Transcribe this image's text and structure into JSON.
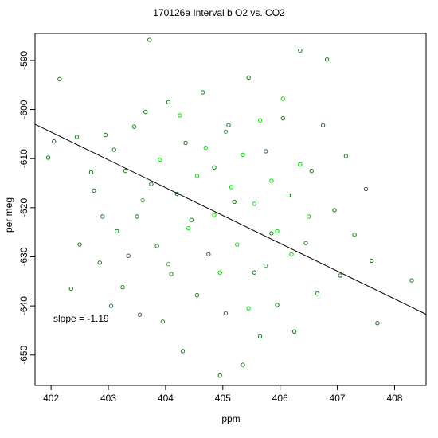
{
  "chart_data": {
    "type": "scatter",
    "title": "170126a   Interval b O2 vs. CO2",
    "xlabel": "ppm",
    "ylabel": "per meg",
    "xlim": [
      401.72,
      408.55
    ],
    "ylim": [
      -656.2,
      -584.5
    ],
    "x_ticks": [
      402,
      403,
      404,
      405,
      406,
      407,
      408
    ],
    "y_ticks": [
      -590,
      -600,
      -610,
      -620,
      -630,
      -640,
      -650
    ],
    "grid": false,
    "legend": "none",
    "colors": {
      "series_dark": "#1a7a1a",
      "series_bright": "#00e000",
      "fit_line": "#000000"
    },
    "annotation": "slope =  -1.19",
    "fit_line": {
      "slope": -1.19,
      "x": [
        401.72,
        408.55
      ],
      "y": [
        -603.0,
        -641.7
      ]
    },
    "series": [
      {
        "x": [
          401.95,
          402.05,
          402.15,
          402.35,
          402.45,
          402.5,
          402.7,
          402.75,
          402.85,
          402.9,
          402.95,
          403.05,
          403.1,
          403.15,
          403.25,
          403.3,
          403.35,
          403.45,
          403.5,
          403.55,
          403.65,
          403.72,
          403.75,
          403.85,
          403.95,
          404.05,
          404.1,
          404.2,
          404.3,
          404.35,
          404.45,
          404.55,
          404.65,
          404.75,
          404.85,
          404.95,
          405.05,
          405.1,
          405.2,
          405.35,
          405.45,
          405.55,
          405.65,
          405.75,
          405.85,
          405.95,
          406.05,
          406.15,
          406.25,
          406.35,
          406.45,
          406.55,
          406.65,
          406.75,
          406.82,
          406.95,
          407.05,
          407.15,
          407.3,
          407.5,
          407.6,
          407.7,
          408.3
        ],
        "y": [
          -609.8,
          -606.5,
          -593.8,
          -636.5,
          -605.6,
          -627.5,
          -612.8,
          -616.5,
          -631.2,
          -621.8,
          -605.2,
          -640.0,
          -608.2,
          -624.8,
          -636.2,
          -612.5,
          -629.8,
          -603.5,
          -621.8,
          -641.8,
          -600.5,
          -585.8,
          -615.2,
          -627.8,
          -643.2,
          -598.5,
          -633.5,
          -617.2,
          -649.2,
          -606.8,
          -622.5,
          -637.8,
          -596.5,
          -629.5,
          -611.8,
          -654.2,
          -641.5,
          -603.2,
          -618.8,
          -652.0,
          -593.5,
          -633.2,
          -646.2,
          -608.5,
          -625.2,
          -639.8,
          -601.8,
          -617.5,
          -645.2,
          -588.0,
          -627.2,
          -612.5,
          -637.5,
          -603.2,
          -589.8,
          -620.5,
          -633.8,
          -609.5,
          -625.5,
          -616.2,
          -630.8,
          -643.5,
          -634.8
        ]
      },
      {
        "x": [
          403.6,
          403.9,
          404.05,
          404.25,
          404.4,
          404.55,
          404.7,
          404.85,
          404.95,
          405.05,
          405.15,
          405.25,
          405.35,
          405.45,
          405.55,
          405.65,
          405.75,
          405.85,
          405.95,
          406.05,
          406.2,
          406.35,
          406.5
        ],
        "y": [
          -618.5,
          -610.2,
          -631.5,
          -601.2,
          -624.2,
          -613.5,
          -607.8,
          -621.5,
          -633.2,
          -604.5,
          -615.8,
          -627.5,
          -609.2,
          -640.5,
          -619.2,
          -602.2,
          -631.8,
          -614.5,
          -624.8,
          -597.8,
          -629.5,
          -611.2,
          -621.8
        ]
      }
    ]
  }
}
